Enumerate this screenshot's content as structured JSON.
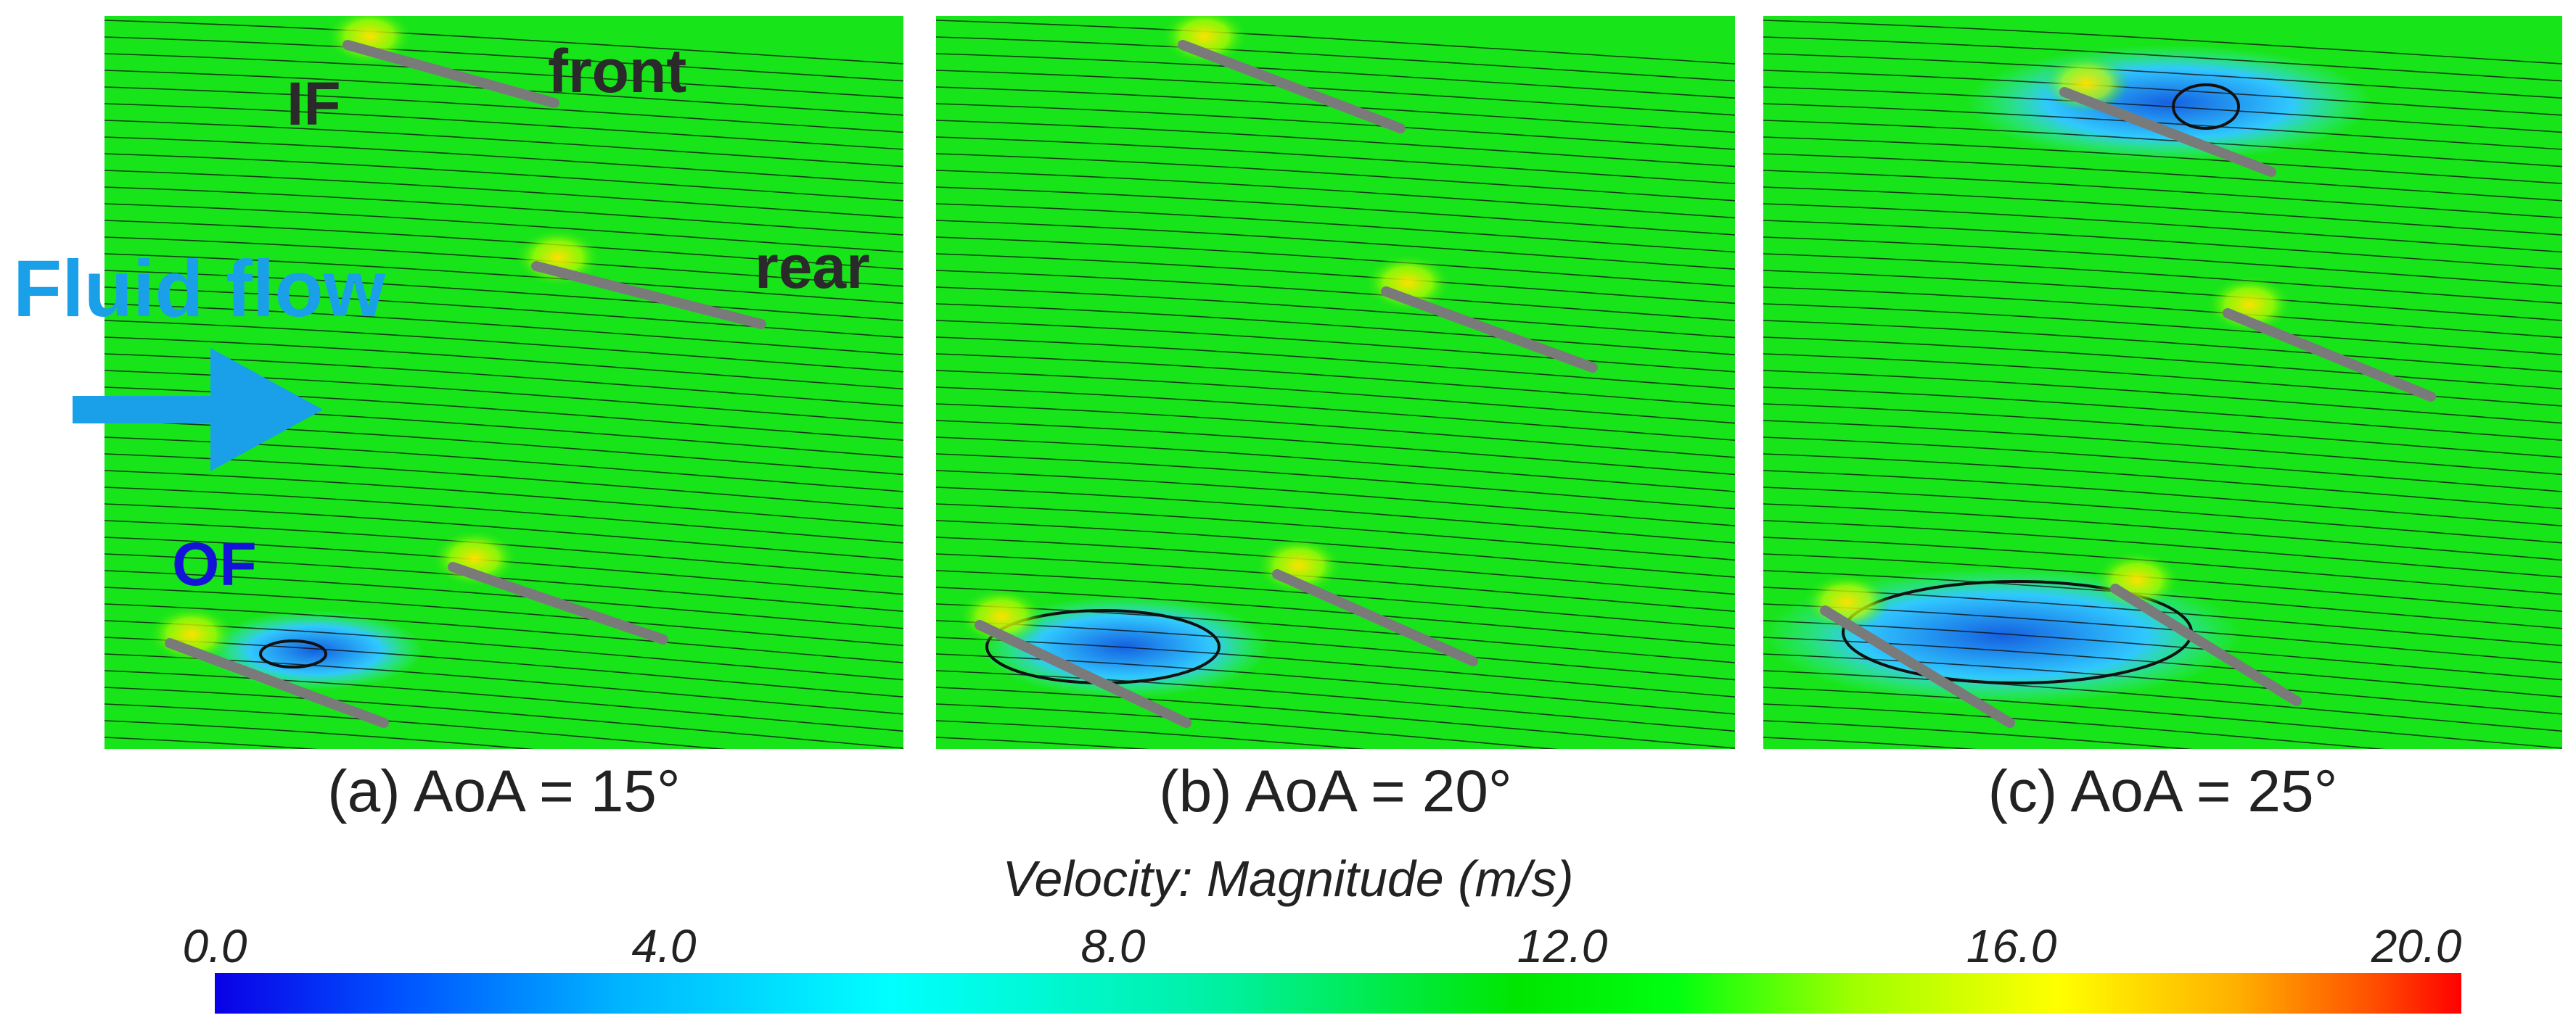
{
  "panels": [
    {
      "caption": "(a) AoA = 15°",
      "aoa_deg": 15
    },
    {
      "caption": "(b) AoA = 20°",
      "aoa_deg": 20
    },
    {
      "caption": "(c) AoA = 25°",
      "aoa_deg": 25
    }
  ],
  "annotations": {
    "inner_foil": "IF",
    "front": "front",
    "rear": "rear",
    "outer_foil": "OF",
    "flow": "Fluid flow"
  },
  "colorbar": {
    "title": "Velocity: Magnitude (m/s)",
    "ticks": [
      "0.0",
      "4.0",
      "8.0",
      "12.0",
      "16.0",
      "20.0"
    ],
    "min": 0.0,
    "max": 20.0
  },
  "colors": {
    "field": "#18e41a",
    "foil": "#7a7a7a",
    "streamline": "#111111",
    "wake": "#30c8ff",
    "vortex": "#1560e0",
    "flow_label": "#1aa0e8",
    "of_label": "#1414d8"
  }
}
